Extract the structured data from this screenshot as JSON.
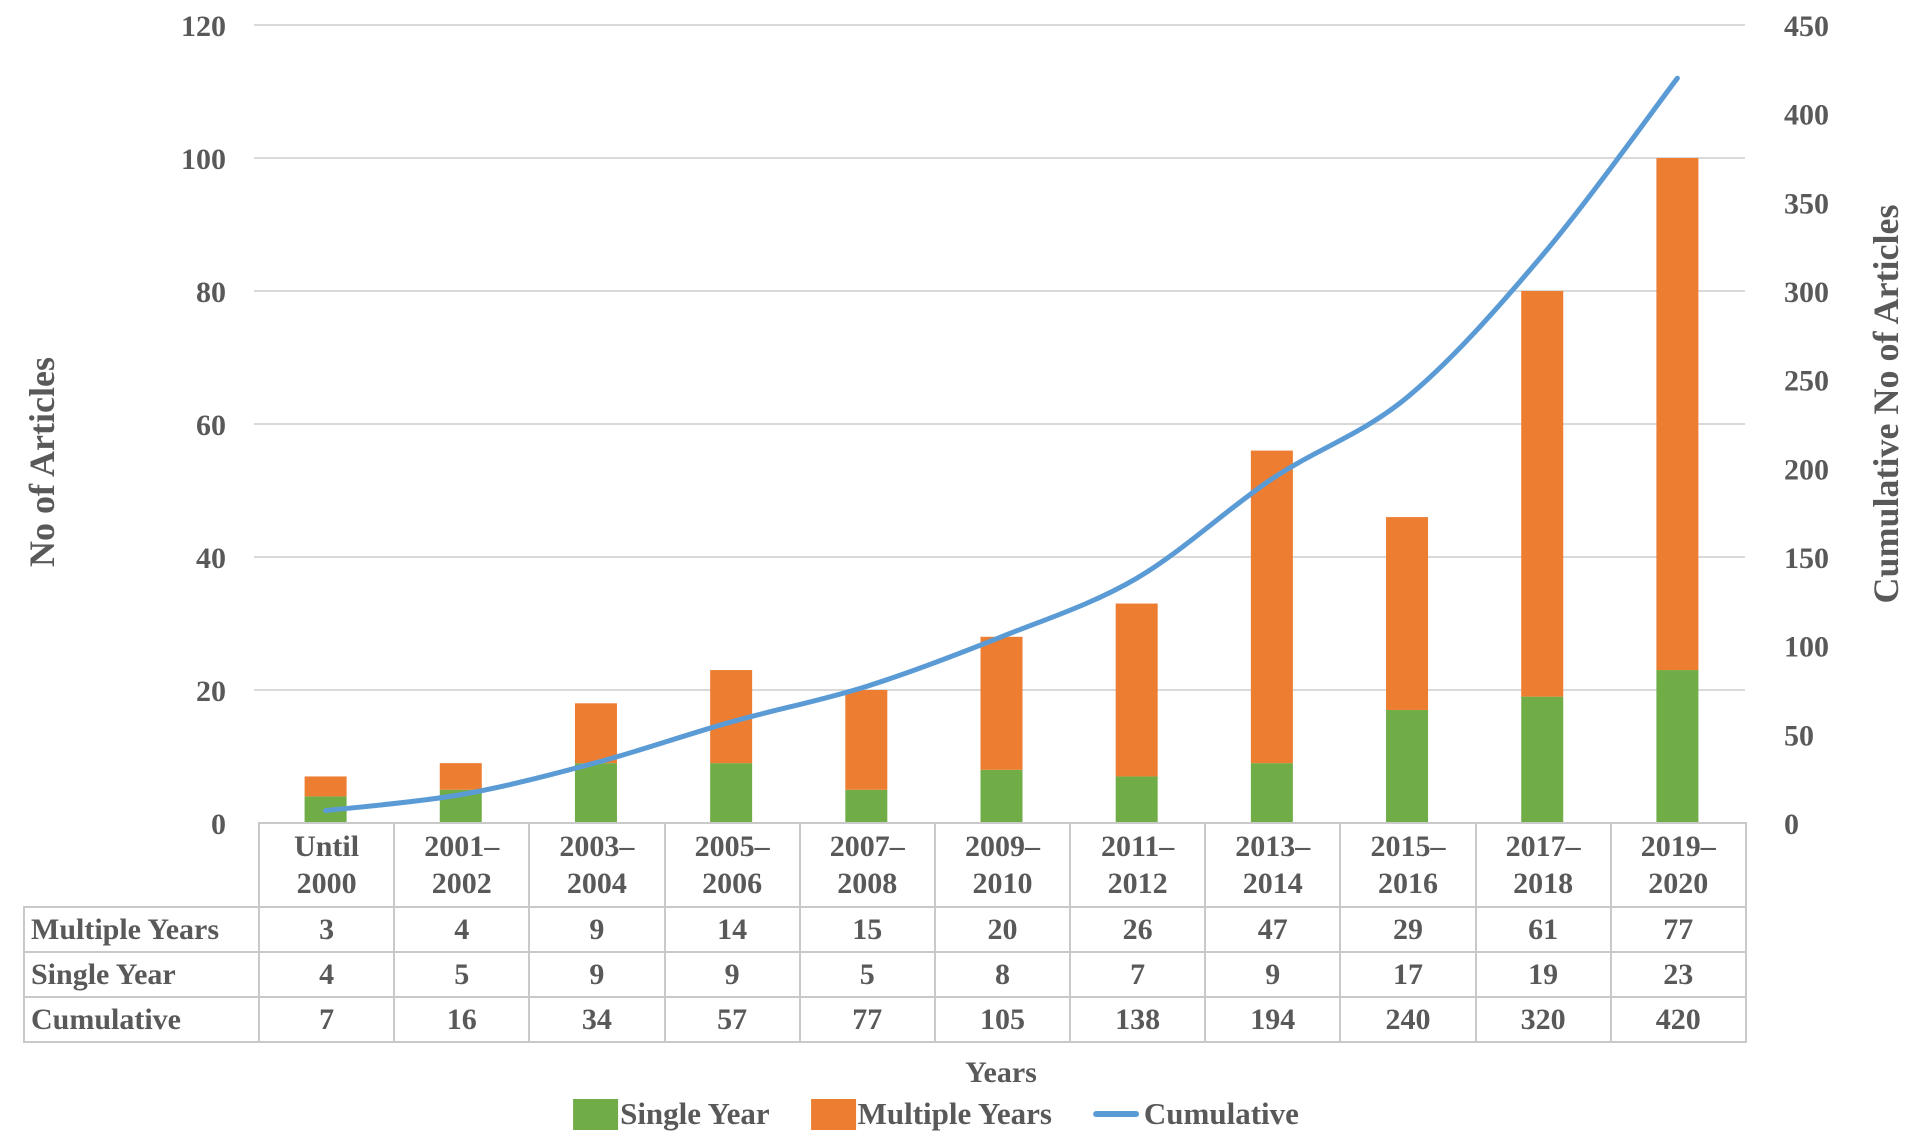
{
  "chart_data": {
    "type": "composite",
    "title": "",
    "categories": [
      "Until 2000",
      "2001–2002",
      "2003–2004",
      "2005–2006",
      "2007–2008",
      "2009–2010",
      "2011–2012",
      "2013–2014",
      "2015–2016",
      "2017–2018",
      "2019–2020"
    ],
    "category_display_lines": [
      [
        "Until",
        "2000"
      ],
      [
        "2001–",
        "2002"
      ],
      [
        "2003–",
        "2004"
      ],
      [
        "2005–",
        "2006"
      ],
      [
        "2007–",
        "2008"
      ],
      [
        "2009–",
        "2010"
      ],
      [
        "2011–",
        "2012"
      ],
      [
        "2013–",
        "2014"
      ],
      [
        "2015–",
        "2016"
      ],
      [
        "2017–",
        "2018"
      ],
      [
        "2019–",
        "2020"
      ]
    ],
    "series": [
      {
        "name": "Single Year",
        "type": "bar",
        "axis": "left",
        "color": "#70AD47",
        "values": [
          4,
          5,
          9,
          9,
          5,
          8,
          7,
          9,
          17,
          19,
          23
        ]
      },
      {
        "name": "Multiple Years",
        "type": "bar",
        "axis": "left",
        "color": "#ED7D31",
        "values": [
          3,
          4,
          9,
          14,
          15,
          20,
          26,
          47,
          29,
          61,
          77
        ]
      },
      {
        "name": "Cumulative",
        "type": "line",
        "axis": "right",
        "color": "#5B9BD5",
        "values": [
          7,
          16,
          34,
          57,
          77,
          105,
          138,
          194,
          240,
          320,
          420
        ]
      }
    ],
    "left_axis": {
      "title": "No of Articles",
      "min": 0,
      "max": 120,
      "step": 20,
      "tick_labels": [
        "120",
        "100",
        "80",
        "60",
        "40",
        "20",
        "0"
      ],
      "tick_values": [
        120,
        100,
        80,
        60,
        40,
        20,
        0
      ]
    },
    "right_axis": {
      "title": "Cumulative No of Articles",
      "min": 0,
      "max": 450,
      "step": 50,
      "tick_labels": [
        "450",
        "400",
        "350",
        "300",
        "250",
        "200",
        "150",
        "100",
        "50",
        "0"
      ],
      "tick_values": [
        450,
        400,
        350,
        300,
        250,
        200,
        150,
        100,
        50,
        0
      ]
    },
    "x_axis": {
      "title": "Years"
    },
    "grid": true,
    "legend_position": "bottom",
    "legend": [
      {
        "label": "Single Year",
        "marker": "square",
        "color": "#70AD47"
      },
      {
        "label": "Multiple Years",
        "marker": "square",
        "color": "#ED7D31"
      },
      {
        "label": "Cumulative",
        "marker": "line",
        "color": "#5B9BD5"
      }
    ]
  },
  "data_table": {
    "row_order": [
      "Multiple Years",
      "Single Year",
      "Cumulative"
    ]
  },
  "colors": {
    "text": "#595959",
    "gridline": "#D9D9D9",
    "table_border": "#C9C9C9",
    "background": "#FFFFFF"
  }
}
